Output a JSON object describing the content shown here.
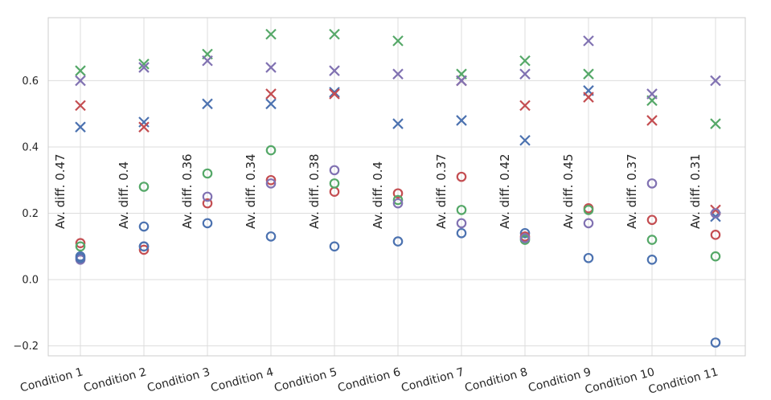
{
  "chart_data": {
    "type": "scatter",
    "title": "",
    "xlabel": "",
    "ylabel": "",
    "ylim": [
      -0.23,
      0.79
    ],
    "yticks": [
      -0.2,
      0.0,
      0.2,
      0.4,
      0.6
    ],
    "ytick_labels": [
      "−0.2",
      "0.0",
      "0.2",
      "0.4",
      "0.6"
    ],
    "grid": true,
    "categories": [
      "Condition 1",
      "Condition 2",
      "Condition 3",
      "Condition 4",
      "Condition 5",
      "Condition 6",
      "Condition 7",
      "Condition 8",
      "Condition 9",
      "Condition 10",
      "Condition 11"
    ],
    "annotations": [
      "Av. diff. 0.47",
      "Av. diff. 0.4",
      "Av. diff. 0.36",
      "Av. diff. 0.34",
      "Av. diff. 0.38",
      "Av. diff. 0.4",
      "Av. diff. 0.37",
      "Av. diff. 0.42",
      "Av. diff. 0.45",
      "Av. diff. 0.37",
      "Av. diff. 0.31"
    ],
    "series": [
      {
        "marker": "x",
        "color": "#4c72b0",
        "values": [
          0.46,
          0.475,
          0.53,
          0.53,
          0.565,
          0.47,
          0.48,
          0.42,
          0.57,
          null,
          0.19
        ]
      },
      {
        "marker": "x",
        "color": "#c44e52",
        "values": [
          0.525,
          0.46,
          null,
          0.56,
          0.56,
          null,
          0.6,
          0.525,
          0.55,
          0.48,
          0.21
        ]
      },
      {
        "marker": "x",
        "color": "#55a868",
        "values": [
          0.63,
          0.65,
          0.68,
          0.74,
          0.74,
          0.72,
          0.62,
          0.66,
          0.62,
          0.54,
          0.47
        ]
      },
      {
        "marker": "x",
        "color": "#8172b2",
        "values": [
          0.6,
          0.64,
          0.66,
          0.64,
          0.63,
          0.62,
          0.6,
          0.62,
          0.72,
          0.56,
          0.6
        ]
      },
      {
        "marker": "o",
        "color": "#4c72b0",
        "values": [
          0.07,
          0.16,
          0.17,
          0.13,
          0.1,
          0.115,
          0.14,
          0.14,
          0.065,
          0.06,
          -0.19
        ]
      },
      {
        "marker": "o",
        "color": "#c44e52",
        "values": [
          0.11,
          0.09,
          0.23,
          0.3,
          0.265,
          0.26,
          0.31,
          0.13,
          0.215,
          0.18,
          0.135
        ]
      },
      {
        "marker": "o",
        "color": "#55a868",
        "values": [
          0.1,
          0.28,
          0.32,
          0.39,
          0.29,
          0.24,
          0.21,
          0.12,
          0.21,
          0.12,
          0.07
        ]
      },
      {
        "marker": "o",
        "color": "#8172b2",
        "values": [
          0.06,
          0.1,
          0.25,
          0.29,
          0.33,
          0.23,
          0.17,
          0.125,
          0.17,
          0.29,
          0.2
        ]
      },
      {
        "marker": "o",
        "color": "#4c72b0",
        "values": [
          0.065,
          0.1,
          null,
          null,
          null,
          null,
          null,
          null,
          null,
          null,
          null
        ]
      }
    ]
  }
}
